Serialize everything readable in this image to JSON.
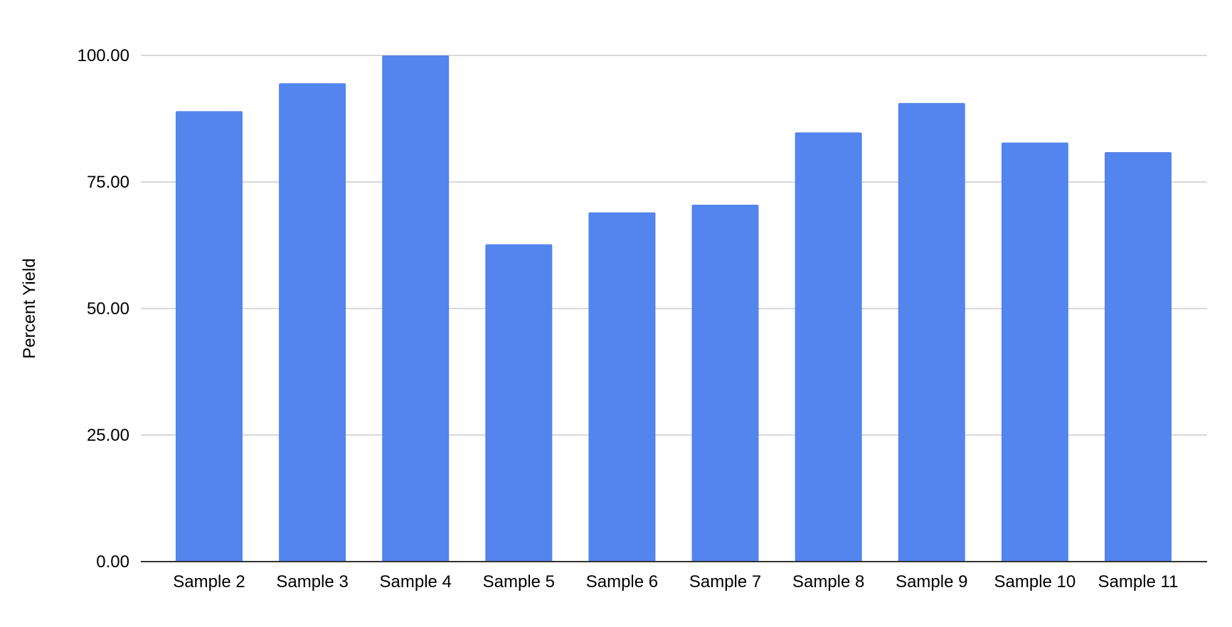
{
  "chart_data": {
    "type": "bar",
    "title": "",
    "xlabel": "",
    "ylabel": "Percent Yield",
    "ylim": [
      0,
      100
    ],
    "y_ticks": [
      "0.00",
      "25.00",
      "50.00",
      "75.00",
      "100.00"
    ],
    "y_tick_values": [
      0,
      25,
      50,
      75,
      100
    ],
    "grid": true,
    "legend": "none",
    "bar_color": "#5484ed",
    "categories": [
      "Sample 2",
      "Sample 3",
      "Sample 4",
      "Sample 5",
      "Sample 6",
      "Sample 7",
      "Sample 8",
      "Sample 9",
      "Sample 10",
      "Sample 11"
    ],
    "values": [
      89.0,
      94.5,
      100.0,
      62.7,
      69.0,
      70.5,
      84.8,
      90.6,
      82.8,
      80.9
    ]
  }
}
